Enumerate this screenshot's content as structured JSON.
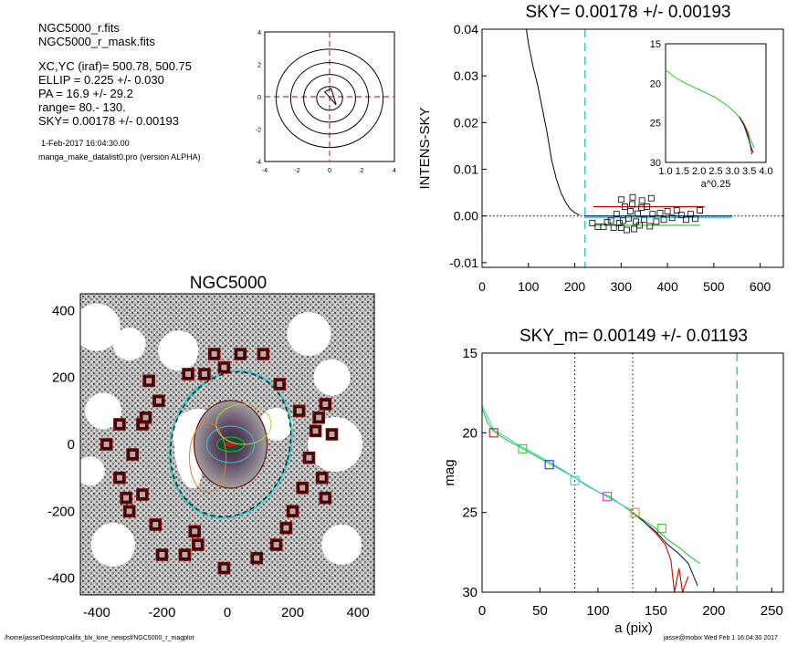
{
  "header": {
    "files": [
      "NGC5000_r.fits",
      "NGC5000_r_mask.fits"
    ],
    "params": [
      "XC,YC (iraf)=   500.78, 500.75",
      "ELLIP = 0.225 +/- 0.030",
      "PA    =  16.9 +/-  29.2",
      "range=   80.-  130.",
      "SKY= 0.00178 +/- 0.00193"
    ],
    "date": "1-Feb-2017 16:04:30.00",
    "program": "manga_make_datalist0.pro (version ALPHA)"
  },
  "footer": {
    "path": "/home/jasse/Desktop/califa_blx_kine_newpsf/NGC5000_r_magplot",
    "stamp": "jasse@mobix  Wed Feb  1 16:04:30 2017"
  },
  "colors": {
    "red": "#d00000",
    "green": "#22cc22",
    "cyan": "#33cccc",
    "blue": "#1a1aee",
    "magenta": "#cc33cc",
    "orange": "#e08020",
    "navy": "#0a2a55",
    "darkred": "#7a0000"
  },
  "chart_data": [
    {
      "type": "contour",
      "title": "",
      "xlim": [
        -4,
        4
      ],
      "ylim": [
        -4,
        4
      ],
      "xticks": [
        "-4",
        "-2",
        "0",
        "2",
        "4"
      ],
      "yticks": [
        "4",
        "2",
        "0",
        "-2",
        "-4"
      ],
      "crosshair_color": "#cc3333",
      "contour_radii": [
        0.8,
        1.6,
        2.4,
        3.3
      ]
    },
    {
      "type": "line",
      "title": "SKY= 0.00178 +/- 0.00193",
      "xlabel": "",
      "ylabel": "INTENS-SKY",
      "xlim": [
        0,
        650
      ],
      "ylim": [
        -0.011,
        0.04
      ],
      "xticks": [
        "0",
        "100",
        "200",
        "300",
        "400",
        "500",
        "600"
      ],
      "yticks": [
        "0.04",
        "0.03",
        "0.02",
        "0.01",
        "0.00",
        "-0.01"
      ],
      "vline_x": 222,
      "profile": [
        [
          88,
          0.045
        ],
        [
          100,
          0.037
        ],
        [
          110,
          0.032
        ],
        [
          120,
          0.028
        ],
        [
          130,
          0.023
        ],
        [
          140,
          0.018
        ],
        [
          150,
          0.012
        ],
        [
          160,
          0.008
        ],
        [
          170,
          0.005
        ],
        [
          180,
          0.003
        ],
        [
          190,
          0.0015
        ],
        [
          200,
          0.0007
        ],
        [
          210,
          0.0002
        ]
      ],
      "bands": [
        {
          "color": "red",
          "y": 0.002,
          "x": [
            240,
            480
          ]
        },
        {
          "color": "green",
          "y": -0.002,
          "x": [
            240,
            470
          ]
        },
        {
          "color": "navy",
          "y": 0.0,
          "x": [
            220,
            540
          ]
        },
        {
          "color": "cyan",
          "y": -0.0003,
          "x": [
            220,
            540
          ]
        }
      ],
      "squares": [
        [
          238,
          -0.0015
        ],
        [
          250,
          -0.0023
        ],
        [
          262,
          -0.0023
        ],
        [
          270,
          -0.0013
        ],
        [
          278,
          -0.001
        ],
        [
          284,
          -0.0025
        ],
        [
          290,
          0.0004
        ],
        [
          296,
          -0.0015
        ],
        [
          300,
          -0.0025
        ],
        [
          304,
          -0.001
        ],
        [
          308,
          0.002
        ],
        [
          312,
          -0.003
        ],
        [
          316,
          -0.0005
        ],
        [
          320,
          0.001
        ],
        [
          324,
          0.0025
        ],
        [
          328,
          -0.0028
        ],
        [
          332,
          -0.0012
        ],
        [
          336,
          0.0005
        ],
        [
          340,
          -0.002
        ],
        [
          344,
          0.0018
        ],
        [
          350,
          -0.0008
        ],
        [
          356,
          0.002
        ],
        [
          362,
          -0.0022
        ],
        [
          368,
          0.0004
        ],
        [
          376,
          -0.0012
        ],
        [
          384,
          0.0006
        ],
        [
          392,
          -0.0008
        ],
        [
          400,
          0.001
        ],
        [
          410,
          -0.0004
        ],
        [
          420,
          0.0012
        ],
        [
          430,
          0.0002
        ],
        [
          440,
          -0.0008
        ],
        [
          450,
          0.0004
        ],
        [
          460,
          -0.0006
        ],
        [
          470,
          0.0012
        ],
        [
          300,
          0.0035
        ],
        [
          325,
          0.004
        ],
        [
          345,
          0.0033
        ],
        [
          365,
          0.0038
        ]
      ],
      "inset": {
        "xlabel": "a^0.25",
        "xlim": [
          1.0,
          4.0
        ],
        "ylim": [
          15,
          30
        ],
        "xticks": [
          "1.0",
          "1.5",
          "2.0",
          "2.5",
          "3.0",
          "3.5",
          "4.0"
        ],
        "yticks": [
          "15",
          "20",
          "25",
          "30"
        ],
        "green": [
          [
            1.0,
            18.3
          ],
          [
            1.3,
            19.3
          ],
          [
            1.6,
            20.0
          ],
          [
            1.9,
            20.6
          ],
          [
            2.2,
            21.2
          ],
          [
            2.5,
            21.8
          ],
          [
            2.7,
            22.4
          ],
          [
            2.9,
            23.0
          ],
          [
            3.1,
            23.8
          ],
          [
            3.3,
            24.8
          ],
          [
            3.45,
            26.0
          ],
          [
            3.55,
            27.2
          ],
          [
            3.65,
            28.2
          ]
        ],
        "red": [
          [
            3.2,
            24.2
          ],
          [
            3.35,
            25.2
          ],
          [
            3.45,
            26.3
          ],
          [
            3.52,
            27.6
          ],
          [
            3.58,
            29.0
          ]
        ],
        "navy": [
          [
            3.2,
            24.2
          ],
          [
            3.35,
            25.4
          ],
          [
            3.45,
            26.7
          ],
          [
            3.55,
            28.0
          ],
          [
            3.62,
            28.8
          ]
        ]
      }
    },
    {
      "type": "image",
      "title": "NGC5000",
      "xlim": [
        -450,
        450
      ],
      "ylim": [
        -450,
        450
      ],
      "xticks": [
        "-400",
        "-200",
        "0",
        "200",
        "400"
      ],
      "yticks": [
        "400",
        "200",
        "0",
        "-200",
        "-400"
      ],
      "boxes": [
        [
          -370,
          0
        ],
        [
          -330,
          -100
        ],
        [
          -300,
          -200
        ],
        [
          -260,
          -150
        ],
        [
          -260,
          60
        ],
        [
          -240,
          190
        ],
        [
          -210,
          130
        ],
        [
          -220,
          -240
        ],
        [
          -200,
          -330
        ],
        [
          -130,
          -330
        ],
        [
          -90,
          -300
        ],
        [
          -120,
          210
        ],
        [
          -100,
          -260
        ],
        [
          -70,
          210
        ],
        [
          -40,
          270
        ],
        [
          -10,
          230
        ],
        [
          -10,
          -370
        ],
        [
          40,
          270
        ],
        [
          90,
          -340
        ],
        [
          110,
          270
        ],
        [
          150,
          -300
        ],
        [
          160,
          180
        ],
        [
          180,
          -250
        ],
        [
          200,
          -200
        ],
        [
          220,
          100
        ],
        [
          230,
          -130
        ],
        [
          250,
          -40
        ],
        [
          270,
          40
        ],
        [
          280,
          80
        ],
        [
          290,
          -100
        ],
        [
          300,
          -160
        ],
        [
          300,
          120
        ],
        [
          320,
          30
        ],
        [
          -290,
          -30
        ],
        [
          -330,
          60
        ],
        [
          -310,
          -160
        ],
        [
          -250,
          80
        ]
      ],
      "ellipse": {
        "rx": 180,
        "ry": 220,
        "pa_deg": 16.9
      }
    },
    {
      "type": "line",
      "title": "SKY_m=  0.00149 +/- 0.01193",
      "xlabel": "a (pix)",
      "ylabel": "mag",
      "xlim": [
        0,
        260
      ],
      "ylim": [
        15,
        30
      ],
      "xticks": [
        "0",
        "50",
        "100",
        "150",
        "200",
        "250"
      ],
      "yticks": [
        "15",
        "20",
        "25",
        "30"
      ],
      "vlines_dotted": [
        80,
        130
      ],
      "vline_dashed": 220,
      "green": [
        [
          0,
          18.5
        ],
        [
          5,
          19.4
        ],
        [
          10,
          19.9
        ],
        [
          20,
          20.4
        ],
        [
          30,
          20.8
        ],
        [
          40,
          21.2
        ],
        [
          55,
          21.8
        ],
        [
          70,
          22.4
        ],
        [
          80,
          22.8
        ],
        [
          90,
          23.3
        ],
        [
          100,
          23.7
        ],
        [
          110,
          24.0
        ],
        [
          120,
          24.5
        ],
        [
          130,
          25.0
        ],
        [
          140,
          25.5
        ],
        [
          150,
          26.0
        ],
        [
          160,
          26.7
        ],
        [
          170,
          27.2
        ],
        [
          180,
          27.8
        ],
        [
          188,
          28.2
        ]
      ],
      "red": [
        [
          130,
          25.0
        ],
        [
          140,
          25.6
        ],
        [
          150,
          26.3
        ],
        [
          158,
          27.0
        ],
        [
          163,
          28.0
        ],
        [
          166,
          30.0
        ],
        [
          170,
          28.5
        ],
        [
          173,
          30.0
        ],
        [
          178,
          29.0
        ]
      ],
      "navy": [
        [
          130,
          25.0
        ],
        [
          140,
          25.6
        ],
        [
          150,
          26.2
        ],
        [
          160,
          27.0
        ],
        [
          170,
          27.6
        ],
        [
          178,
          28.2
        ],
        [
          186,
          29.6
        ]
      ],
      "cyan": [
        [
          0,
          18.3
        ],
        [
          10,
          19.8
        ],
        [
          30,
          20.7
        ],
        [
          60,
          21.9
        ],
        [
          100,
          23.7
        ],
        [
          130,
          24.9
        ]
      ],
      "markers": [
        {
          "x": 10,
          "y": 20.0,
          "color": "red"
        },
        {
          "x": 35,
          "y": 21.0,
          "color": "green"
        },
        {
          "x": 58,
          "y": 22.0,
          "color": "blue"
        },
        {
          "x": 80,
          "y": 23.0,
          "color": "cyan"
        },
        {
          "x": 108,
          "y": 24.0,
          "color": "magenta"
        },
        {
          "x": 132,
          "y": 25.0,
          "color": "orange"
        },
        {
          "x": 155,
          "y": 26.0,
          "color": "green"
        }
      ]
    }
  ]
}
